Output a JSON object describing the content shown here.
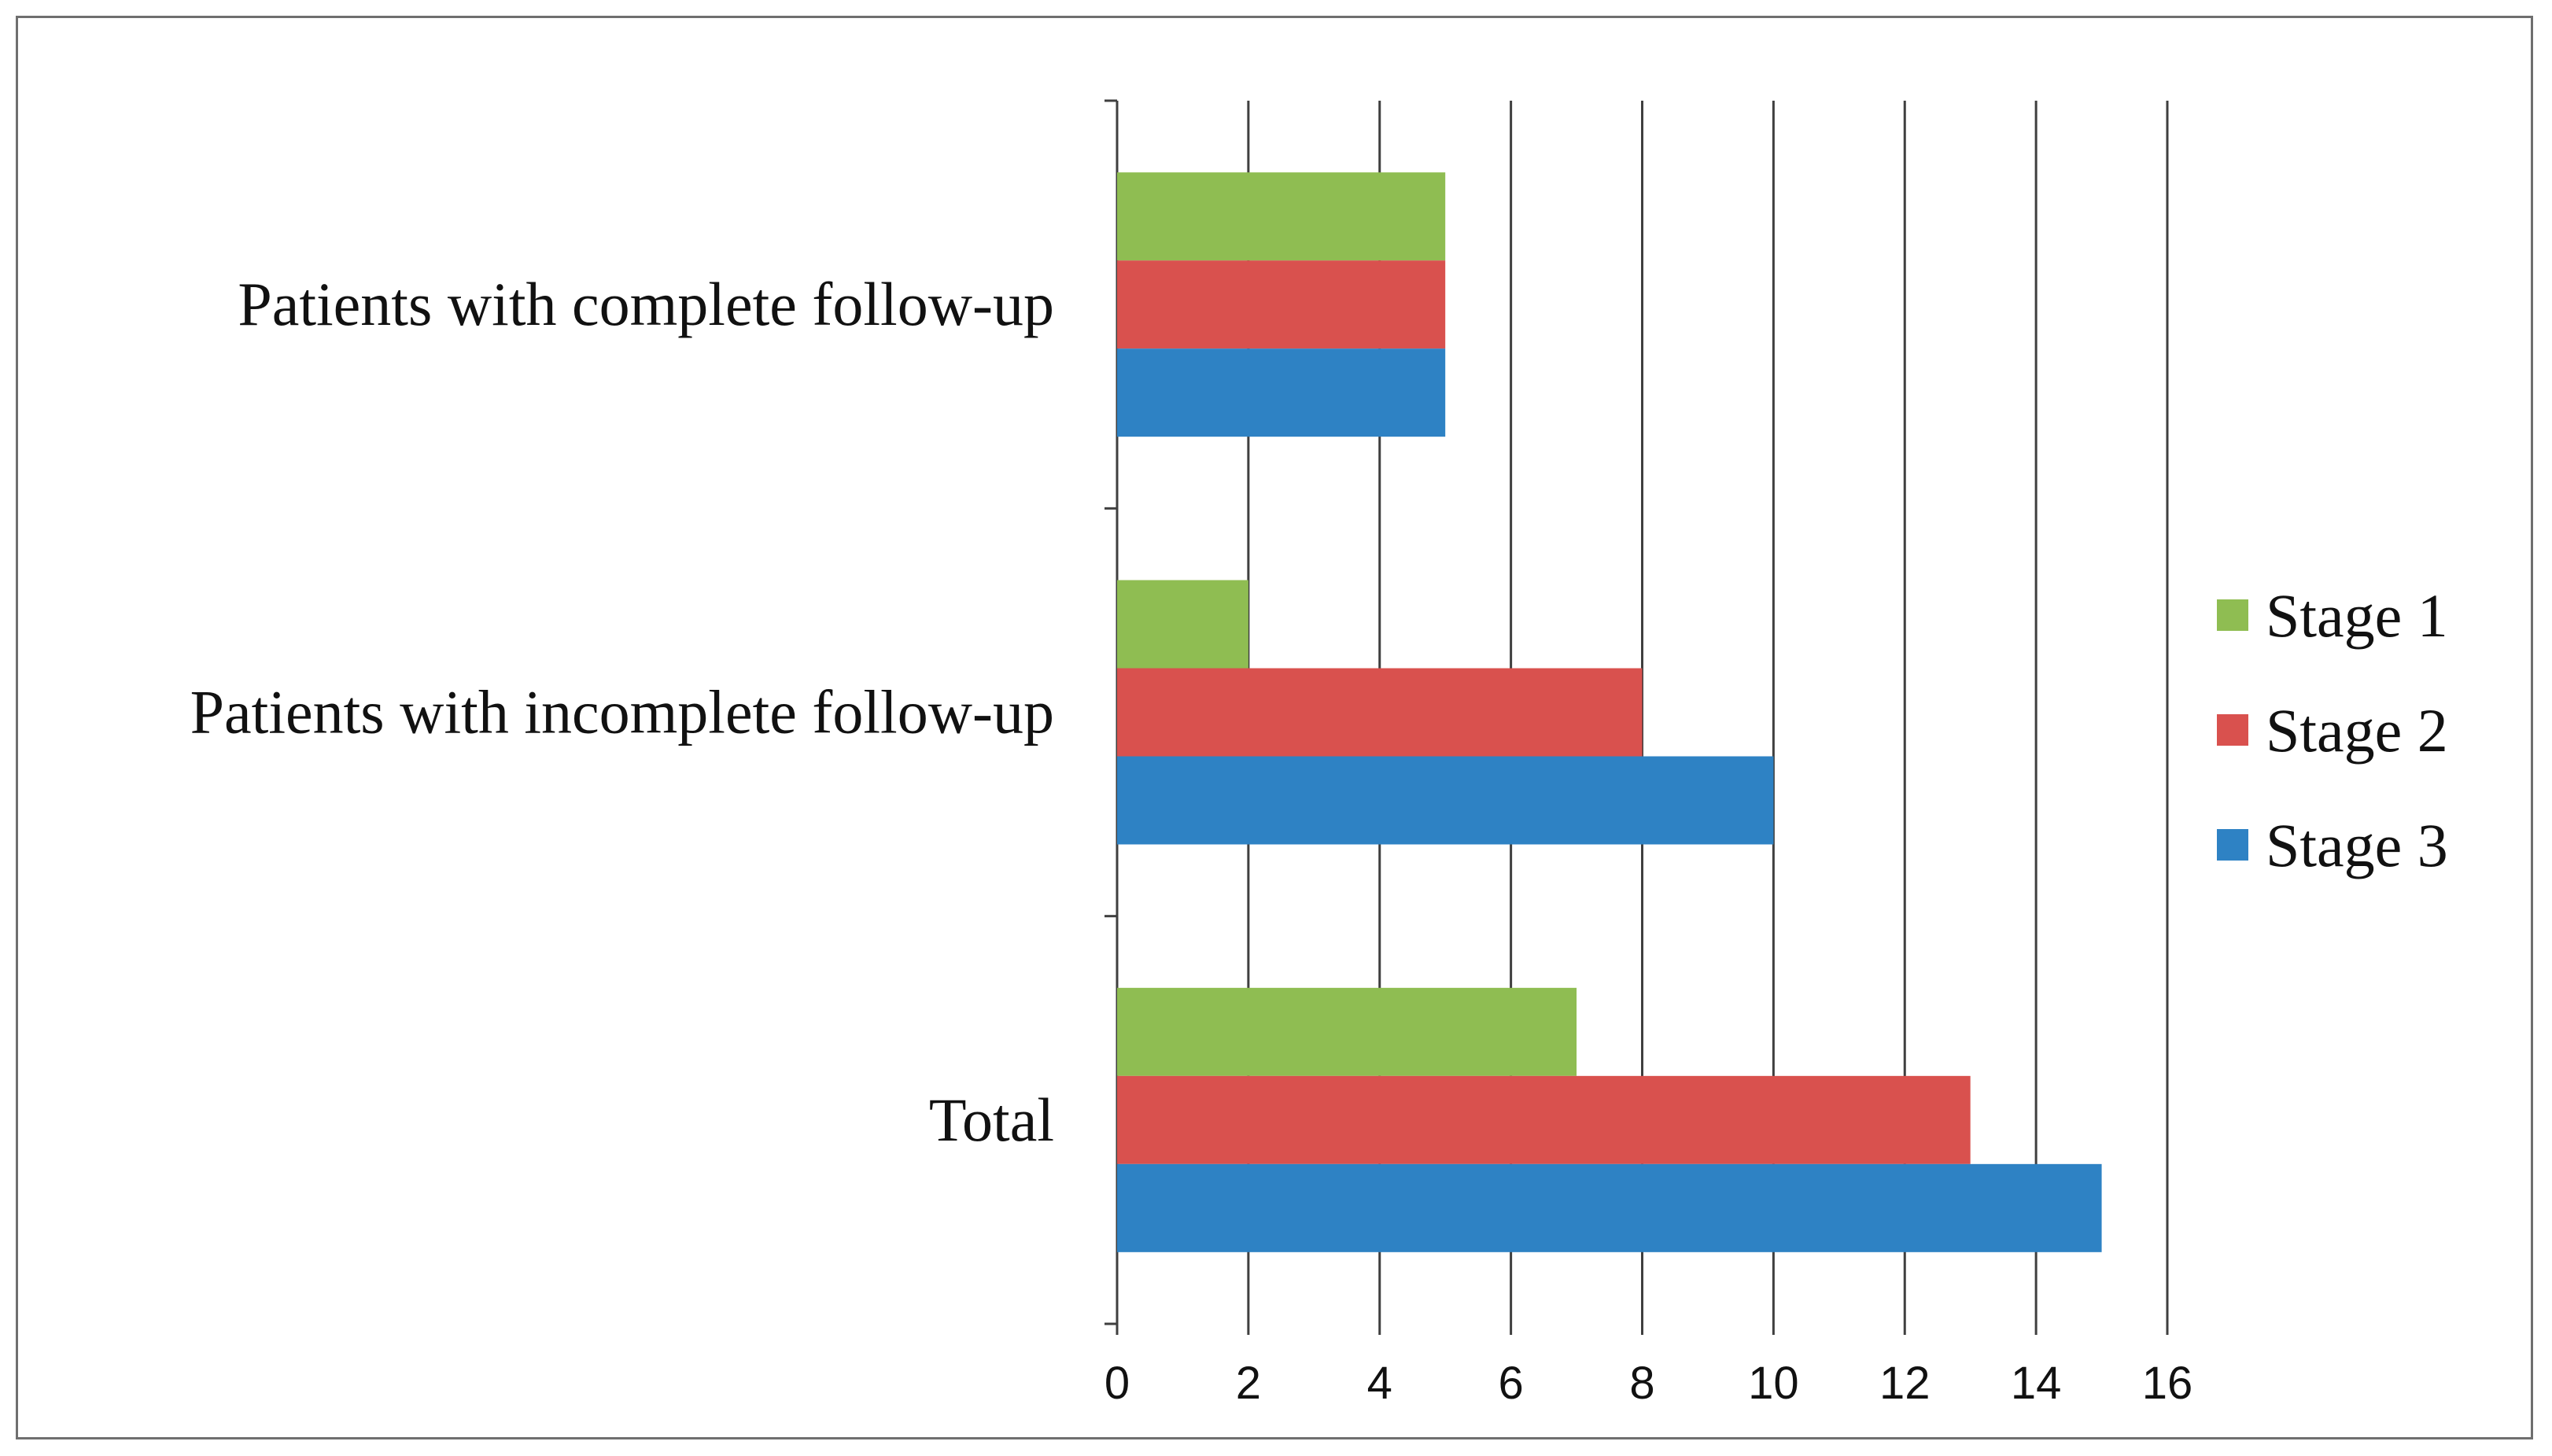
{
  "chart_data": {
    "type": "bar",
    "orientation": "horizontal",
    "categories": [
      "Patients with complete follow-up",
      "Patients with incomplete follow-up",
      "Total"
    ],
    "series": [
      {
        "name": "Stage 1",
        "color": "#8fbd52",
        "values": [
          5,
          2,
          7
        ]
      },
      {
        "name": "Stage 2",
        "color": "#d9514e",
        "values": [
          5,
          8,
          13
        ]
      },
      {
        "name": "Stage 3",
        "color": "#2e82c4",
        "values": [
          5,
          10,
          15
        ]
      }
    ],
    "xlim": [
      0,
      16
    ],
    "xticks": [
      "0",
      "2",
      "4",
      "6",
      "8",
      "10",
      "12",
      "14",
      "16"
    ],
    "grid": "vertical",
    "legend_position": "right"
  }
}
